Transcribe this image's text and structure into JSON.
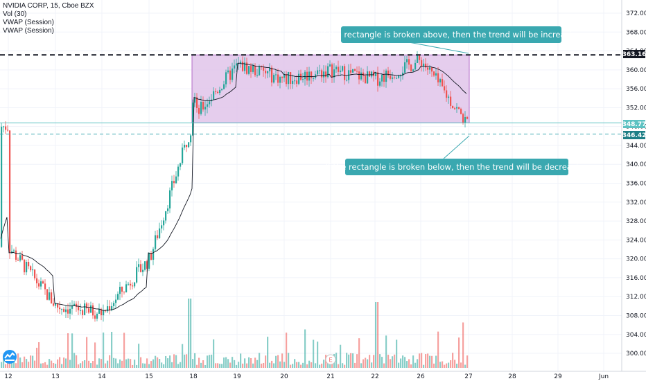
{
  "legend": {
    "symbol_line": "NVIDIA CORP, 15, Cboe BZX",
    "volume_line": "Vol (30)",
    "vwap_line_1": "VWAP (Session)",
    "vwap_line_2": "VWAP (Session)"
  },
  "price_tags": {
    "top_level": "363.16",
    "last_price": "348.77",
    "bottom_level": "346.42"
  },
  "annotations": {
    "above": "If the rectangle is broken above, then the trend will be increasing",
    "below": "If the rectangle is broken below, then the trend will be decreasing",
    "earnings_marker": "E"
  },
  "colors": {
    "up": "#26a69a",
    "down": "#ef5350",
    "vwap": "#131722",
    "rectangle_fill": "#e1c4ea",
    "rectangle_border": "#9c27b0",
    "callout": "#3aa8b0",
    "last_price_line": "#5cc2c2"
  },
  "chart_data": {
    "type": "candlestick",
    "symbol": "NVIDIA CORP",
    "interval": "15",
    "exchange": "Cboe BZX",
    "x_ticks": [
      "12",
      "13",
      "14",
      "15",
      "18",
      "19",
      "20",
      "21",
      "22",
      "26",
      "27",
      "28",
      "29",
      "Jun"
    ],
    "y_ticks": [
      "372.00",
      "368.00",
      "364.00",
      "360.00",
      "356.00",
      "352.00",
      "348.00",
      "344.00",
      "340.00",
      "336.00",
      "332.00",
      "328.00",
      "324.00",
      "320.00",
      "316.00",
      "312.00",
      "308.00",
      "304.00",
      "300.00"
    ],
    "ylim": [
      298.5,
      373.5
    ],
    "horizontal_lines": [
      {
        "value": 363.16,
        "style": "dashed"
      },
      {
        "value": 346.42,
        "style": "dashed"
      },
      {
        "value": 348.77,
        "style": "solid"
      }
    ],
    "rectangle": {
      "top": 363.16,
      "bottom": 348.77,
      "from": "18",
      "to": "27"
    },
    "price_path": [
      {
        "day": "12",
        "price": 322.5
      },
      {
        "day": "13",
        "price": 310.0
      },
      {
        "day": "14",
        "price": 308.5
      },
      {
        "day": "15",
        "price": 320.0
      },
      {
        "day": "18",
        "price": 350.0
      },
      {
        "day": "19",
        "price": 361.0
      },
      {
        "day": "20",
        "price": 358.0
      },
      {
        "day": "21",
        "price": 360.0
      },
      {
        "day": "22",
        "price": 358.0
      },
      {
        "day": "26",
        "price": 362.0
      },
      {
        "day": "27",
        "price": 348.0
      }
    ],
    "series": [
      {
        "name": "VWAP (Session)"
      },
      {
        "name": "Vol (30)"
      }
    ]
  }
}
